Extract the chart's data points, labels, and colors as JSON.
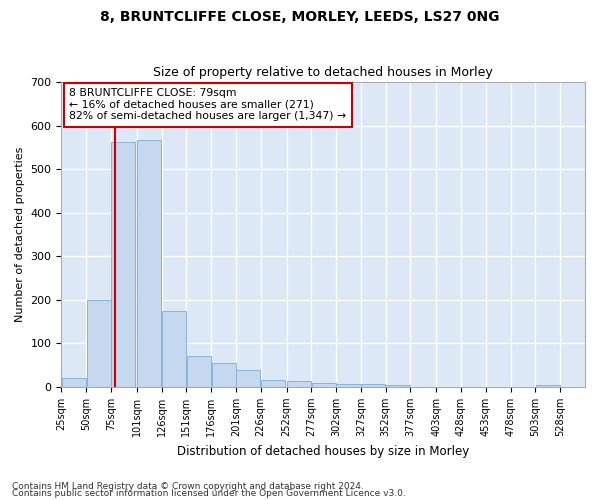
{
  "title": "8, BRUNTCLIFFE CLOSE, MORLEY, LEEDS, LS27 0NG",
  "subtitle": "Size of property relative to detached houses in Morley",
  "xlabel": "Distribution of detached houses by size in Morley",
  "ylabel": "Number of detached properties",
  "bar_color": "#c5d8f0",
  "bar_edge_color": "#7aadd4",
  "bg_color": "#dce8f5",
  "grid_color": "#ffffff",
  "annotation_box_color": "#cc0000",
  "property_line_color": "#cc0000",
  "property_value": 79,
  "annotation_text": "8 BRUNTCLIFFE CLOSE: 79sqm\n← 16% of detached houses are smaller (271)\n82% of semi-detached houses are larger (1,347) →",
  "bin_starts": [
    25,
    50,
    75,
    101,
    126,
    151,
    176,
    201,
    226,
    252,
    277,
    302,
    327,
    352,
    377,
    403,
    428,
    453,
    478,
    503,
    528
  ],
  "bin_labels": [
    "25sqm",
    "50sqm",
    "75sqm",
    "101sqm",
    "126sqm",
    "151sqm",
    "176sqm",
    "201sqm",
    "226sqm",
    "252sqm",
    "277sqm",
    "302sqm",
    "327sqm",
    "352sqm",
    "377sqm",
    "403sqm",
    "428sqm",
    "453sqm",
    "478sqm",
    "503sqm",
    "528sqm"
  ],
  "bar_heights": [
    20,
    200,
    562,
    568,
    175,
    70,
    55,
    40,
    15,
    13,
    8,
    7,
    6,
    5,
    0,
    0,
    0,
    0,
    0,
    5,
    0
  ],
  "ylim": [
    0,
    700
  ],
  "yticks": [
    0,
    100,
    200,
    300,
    400,
    500,
    600,
    700
  ],
  "footnote1": "Contains HM Land Registry data © Crown copyright and database right 2024.",
  "footnote2": "Contains public sector information licensed under the Open Government Licence v3.0."
}
